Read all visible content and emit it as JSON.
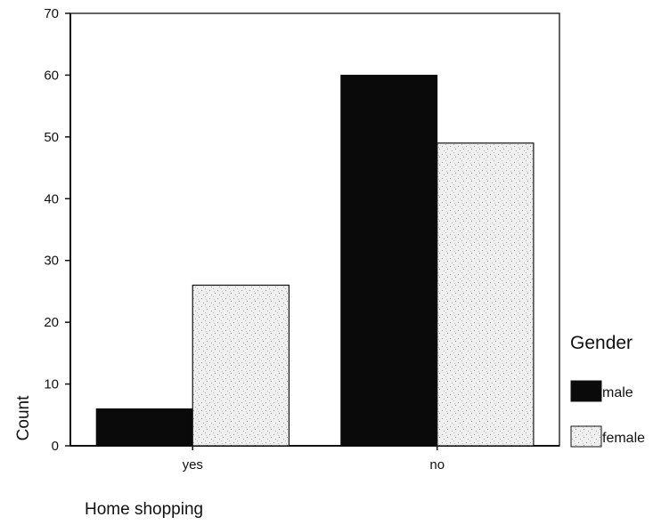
{
  "chart_data": {
    "type": "bar",
    "categories": [
      "yes",
      "no"
    ],
    "series": [
      {
        "name": "male",
        "values": [
          6,
          60
        ],
        "color": "#0a0a0a"
      },
      {
        "name": "female",
        "values": [
          26,
          49
        ],
        "color": "#ececec"
      }
    ],
    "xlabel": "Home shopping",
    "ylabel": "Count",
    "ylim": [
      0,
      70
    ],
    "yticks": [
      0,
      10,
      20,
      30,
      40,
      50,
      60,
      70
    ],
    "legend_title": "Gender",
    "legend_position": "right",
    "grid": false
  }
}
